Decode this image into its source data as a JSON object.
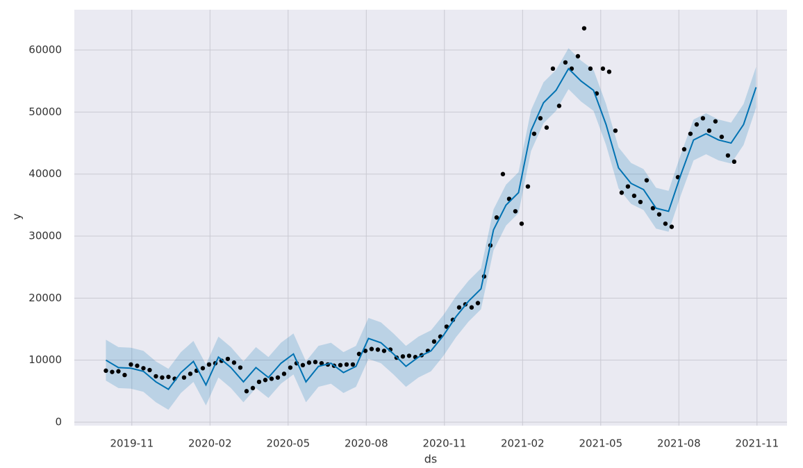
{
  "chart_data": {
    "type": "forecast",
    "x_label": "ds",
    "y_label": "y",
    "xlim": [
      2019.649,
      2021.929
    ],
    "xticks": [
      {
        "value": 2019.833,
        "label": "2019-11"
      },
      {
        "value": 2020.083,
        "label": "2020-02"
      },
      {
        "value": 2020.333,
        "label": "2020-05"
      },
      {
        "value": 2020.583,
        "label": "2020-08"
      },
      {
        "value": 2020.833,
        "label": "2020-11"
      },
      {
        "value": 2021.083,
        "label": "2021-02"
      },
      {
        "value": 2021.333,
        "label": "2021-05"
      },
      {
        "value": 2021.583,
        "label": "2021-08"
      },
      {
        "value": 2021.833,
        "label": "2021-11"
      }
    ],
    "ylim": [
      -560,
      66500
    ],
    "yticks": [
      0,
      10000,
      20000,
      30000,
      40000,
      50000,
      60000
    ],
    "grid": true,
    "observed": {
      "color": "#000000",
      "x": [
        2019.75,
        2019.77,
        2019.79,
        2019.81,
        2019.83,
        2019.85,
        2019.87,
        2019.89,
        2019.91,
        2019.93,
        2019.95,
        2019.97,
        2020.0,
        2020.02,
        2020.04,
        2020.06,
        2020.08,
        2020.1,
        2020.12,
        2020.14,
        2020.16,
        2020.18,
        2020.2,
        2020.22,
        2020.24,
        2020.26,
        2020.28,
        2020.3,
        2020.32,
        2020.34,
        2020.36,
        2020.38,
        2020.4,
        2020.42,
        2020.44,
        2020.46,
        2020.48,
        2020.5,
        2020.52,
        2020.54,
        2020.56,
        2020.58,
        2020.6,
        2020.62,
        2020.64,
        2020.66,
        2020.68,
        2020.7,
        2020.72,
        2020.74,
        2020.76,
        2020.78,
        2020.8,
        2020.82,
        2020.84,
        2020.86,
        2020.88,
        2020.9,
        2020.92,
        2020.94,
        2020.96,
        2020.98,
        2021.0,
        2021.02,
        2021.04,
        2021.06,
        2021.08,
        2021.1,
        2021.12,
        2021.14,
        2021.16,
        2021.18,
        2021.2,
        2021.22,
        2021.24,
        2021.26,
        2021.28,
        2021.3,
        2021.32,
        2021.34,
        2021.36,
        2021.38,
        2021.4,
        2021.42,
        2021.44,
        2021.46,
        2021.48,
        2021.5,
        2021.52,
        2021.54,
        2021.56,
        2021.58,
        2021.6,
        2021.62,
        2021.64,
        2021.66,
        2021.68,
        2021.7,
        2021.72,
        2021.74,
        2021.76
      ],
      "values": [
        8300,
        8100,
        8200,
        7600,
        9300,
        9100,
        8700,
        8400,
        7400,
        7200,
        7300,
        7000,
        7200,
        7800,
        8300,
        8700,
        9300,
        9500,
        9900,
        10200,
        9600,
        8800,
        5000,
        5500,
        6500,
        6800,
        7000,
        7200,
        7800,
        8800,
        9500,
        9200,
        9600,
        9700,
        9500,
        9300,
        9100,
        9200,
        9300,
        9300,
        11000,
        11500,
        11800,
        11700,
        11500,
        11700,
        10400,
        10600,
        10700,
        10500,
        10800,
        11500,
        13000,
        13800,
        15400,
        16500,
        18500,
        19000,
        18500,
        19200,
        23500,
        28500,
        33000,
        40000,
        36000,
        34000,
        32000,
        38000,
        46500,
        49000,
        47500,
        57000,
        51000,
        58000,
        57000,
        59000,
        63500,
        57000,
        53000,
        57000,
        56500,
        47000,
        37000,
        38000,
        36500,
        35500,
        39000,
        34500,
        33500,
        32000,
        31500,
        39500,
        44000,
        46500,
        48000,
        49000,
        47000,
        48500,
        46000,
        43000,
        42000
      ]
    },
    "forecast": {
      "color": "#0072b2",
      "x": [
        2019.75,
        2019.79,
        2019.83,
        2019.87,
        2019.91,
        2019.95,
        2019.99,
        2020.03,
        2020.07,
        2020.11,
        2020.15,
        2020.19,
        2020.23,
        2020.27,
        2020.31,
        2020.35,
        2020.39,
        2020.43,
        2020.47,
        2020.51,
        2020.55,
        2020.59,
        2020.63,
        2020.67,
        2020.71,
        2020.75,
        2020.79,
        2020.83,
        2020.87,
        2020.91,
        2020.95,
        2020.99,
        2021.03,
        2021.07,
        2021.11,
        2021.15,
        2021.19,
        2021.23,
        2021.27,
        2021.31,
        2021.35,
        2021.39,
        2021.43,
        2021.47,
        2021.51,
        2021.55,
        2021.59,
        2021.63,
        2021.67,
        2021.71,
        2021.75,
        2021.79,
        2021.83
      ],
      "values": [
        10000,
        8800,
        8700,
        8200,
        6500,
        5300,
        8000,
        9800,
        6000,
        10500,
        8800,
        6500,
        8800,
        7200,
        9500,
        11000,
        6500,
        9000,
        9500,
        8000,
        9000,
        13500,
        12800,
        11000,
        9000,
        10500,
        11500,
        14000,
        17000,
        19500,
        21500,
        31000,
        35000,
        37000,
        47000,
        51500,
        53500,
        57000,
        55000,
        53500,
        48000,
        41000,
        38500,
        37500,
        34500,
        34000,
        40000,
        45500,
        46500,
        45500,
        45000,
        48000,
        54000
      ],
      "lower": [
        6700,
        5500,
        5400,
        4900,
        3200,
        2000,
        4700,
        6500,
        2700,
        7200,
        5500,
        3200,
        5500,
        3900,
        6200,
        7700,
        3200,
        5700,
        6200,
        4700,
        5700,
        10200,
        9500,
        7700,
        5700,
        7200,
        8200,
        10700,
        13700,
        16200,
        18200,
        27700,
        31700,
        33700,
        43700,
        48200,
        50200,
        53700,
        51700,
        50200,
        44700,
        37700,
        35200,
        34200,
        31200,
        30700,
        36700,
        42200,
        43200,
        42200,
        41700,
        44700,
        50700
      ],
      "upper": [
        13300,
        12100,
        12000,
        11500,
        9800,
        8600,
        11300,
        13100,
        9300,
        13800,
        12100,
        9800,
        12100,
        10500,
        12800,
        14300,
        9800,
        12300,
        12800,
        11300,
        12300,
        16800,
        16100,
        14300,
        12300,
        13800,
        14800,
        17300,
        20300,
        22800,
        24800,
        34300,
        38300,
        40300,
        50300,
        54800,
        56800,
        60300,
        58300,
        56800,
        51300,
        44300,
        41800,
        40800,
        37800,
        37300,
        43300,
        48800,
        49800,
        48800,
        48300,
        51300,
        57300
      ]
    }
  }
}
